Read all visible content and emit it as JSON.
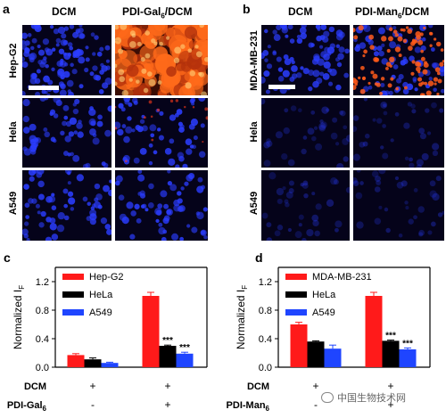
{
  "panels": {
    "a": {
      "letter": "a",
      "col_titles": [
        "DCM",
        "PDI-Gal"
      ],
      "col_title_sub": "6",
      "col_title_suffix": "/DCM",
      "row_labels": [
        "Hep-G2",
        "Hela",
        "A549"
      ]
    },
    "b": {
      "letter": "b",
      "col_titles": [
        "DCM",
        "PDI-Man"
      ],
      "col_title_sub": "6",
      "col_title_suffix": "/DCM",
      "row_labels": [
        "MDA-MB-231",
        "Hela",
        "A549"
      ]
    }
  },
  "colors": {
    "red": "#ff1a1a",
    "black": "#000000",
    "blue": "#1f45ff",
    "nucleus": "#2b3dff",
    "fluor": "#ff6a1a"
  },
  "chart_data": [
    {
      "panel": "c",
      "type": "bar",
      "ylabel": "Normalized I",
      "ylabel_sub": "F",
      "ylim": [
        0,
        1.4
      ],
      "yticks": [
        "0.0",
        "0.4",
        "0.8",
        "1.2"
      ],
      "legend_position": "top-left",
      "series": [
        {
          "name": "Hep-G2",
          "color": "#ff1a1a",
          "values": [
            0.17,
            1.0
          ],
          "err": [
            0.02,
            0.05
          ]
        },
        {
          "name": "HeLa",
          "color": "#000000",
          "values": [
            0.11,
            0.3
          ],
          "err": [
            0.02,
            0.01
          ]
        },
        {
          "name": "A549",
          "color": "#1f45ff",
          "values": [
            0.06,
            0.19
          ],
          "err": [
            0.01,
            0.02
          ]
        }
      ],
      "significance": [
        null,
        [
          "",
          "***",
          "***"
        ]
      ],
      "conditions": [
        {
          "label": "DCM",
          "marks": [
            "+",
            "+"
          ]
        },
        {
          "label": "PDI-Gal",
          "label_sub": "6",
          "marks": [
            "-",
            "+"
          ]
        }
      ]
    },
    {
      "panel": "d",
      "type": "bar",
      "ylabel": "Normalized I",
      "ylabel_sub": "F",
      "ylim": [
        0,
        1.4
      ],
      "yticks": [
        "0.0",
        "0.4",
        "0.8",
        "1.2"
      ],
      "legend_position": "top-left",
      "series": [
        {
          "name": "MDA-MB-231",
          "color": "#ff1a1a",
          "values": [
            0.6,
            1.0
          ],
          "err": [
            0.03,
            0.05
          ]
        },
        {
          "name": "HeLa",
          "color": "#000000",
          "values": [
            0.36,
            0.37
          ],
          "err": [
            0.01,
            0.01
          ]
        },
        {
          "name": "A549",
          "color": "#1f45ff",
          "values": [
            0.26,
            0.25
          ],
          "err": [
            0.05,
            0.02
          ]
        }
      ],
      "significance": [
        null,
        [
          "",
          "***",
          "***"
        ]
      ],
      "conditions": [
        {
          "label": "DCM",
          "marks": [
            "+",
            "+"
          ]
        },
        {
          "label": "PDI-Man",
          "label_sub": "6",
          "marks": [
            "-",
            "+"
          ]
        }
      ]
    }
  ],
  "watermark": "中国生物技术网"
}
